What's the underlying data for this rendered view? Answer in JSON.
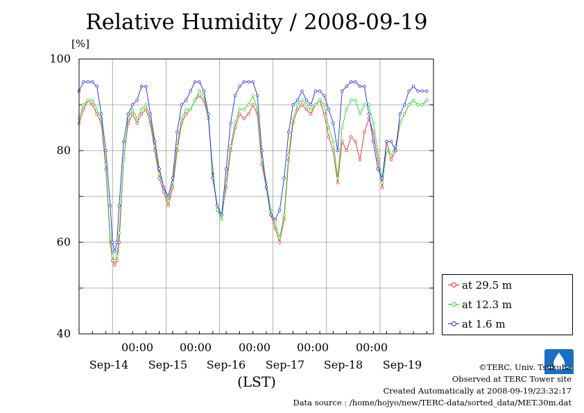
{
  "colors": {
    "s29": "#ee2222",
    "s12": "#22dd22",
    "s16": "#2222ee",
    "grid": "#999999"
  },
  "chart_data": {
    "type": "line",
    "title": "Relative Humidity / 2008-09-19",
    "ylabel": "[%]",
    "xlabel": "(LST)",
    "ylim": [
      40,
      100
    ],
    "yticks": [
      "100",
      "80",
      "60",
      "40"
    ],
    "xlim": [
      "2008-09-13 09:00",
      "2008-09-19 24:00"
    ],
    "x_time_labels": [
      "00:00",
      "00:00",
      "00:00",
      "00:00",
      "00:00"
    ],
    "x_date_labels": [
      "Sep-14",
      "Sep-15",
      "Sep-16",
      "Sep-17",
      "Sep-18",
      "Sep-19"
    ],
    "grid": true,
    "legend": "bottom-right outside",
    "x_hours_since_start": [
      0,
      2,
      4,
      6,
      8,
      10,
      12,
      14,
      15,
      16,
      17,
      18,
      20,
      22,
      24,
      26,
      28,
      30,
      32,
      34,
      36,
      38,
      40,
      42,
      44,
      46,
      48,
      50,
      52,
      54,
      56,
      58,
      60,
      62,
      64,
      66,
      68,
      70,
      72,
      74,
      76,
      78,
      80,
      82,
      84,
      86,
      88,
      90,
      92,
      94,
      96,
      98,
      100,
      102,
      104,
      106,
      108,
      110,
      112,
      114,
      116,
      118,
      120,
      122,
      124,
      126,
      128,
      130,
      132,
      134,
      136,
      138,
      140,
      142,
      144,
      146,
      148,
      150,
      152,
      154,
      156
    ],
    "series": [
      {
        "name": "at 29.5 m",
        "color": "#ee2222",
        "values": [
          86,
          89,
          91,
          90,
          88,
          86,
          76,
          60,
          56,
          55,
          56,
          60,
          78,
          86,
          88,
          86,
          88,
          89,
          86,
          80,
          74,
          71,
          68,
          72,
          80,
          86,
          88,
          89,
          91,
          92,
          91,
          87,
          75,
          67,
          66,
          72,
          80,
          85,
          88,
          87,
          88,
          90,
          88,
          77,
          72,
          66,
          63,
          60,
          65,
          78,
          86,
          89,
          90,
          89,
          88,
          90,
          91,
          88,
          83,
          80,
          73,
          82,
          80,
          83,
          82,
          78,
          84,
          87,
          84,
          78,
          72,
          82,
          78,
          80,
          86,
          88,
          90,
          91,
          90,
          90,
          91
        ]
      },
      {
        "name": "at 12.3 m",
        "color": "#22dd22",
        "values": [
          87,
          90,
          91,
          91,
          89,
          87,
          77,
          61,
          57,
          56,
          57,
          62,
          78,
          87,
          89,
          87,
          89,
          90,
          87,
          81,
          75,
          72,
          69,
          73,
          81,
          87,
          89,
          89,
          91,
          93,
          92,
          87,
          76,
          67,
          65,
          73,
          81,
          86,
          89,
          89,
          90,
          92,
          89,
          78,
          73,
          67,
          64,
          61,
          66,
          79,
          87,
          90,
          91,
          90,
          89,
          90,
          91,
          90,
          85,
          82,
          74,
          85,
          89,
          91,
          91,
          88,
          90,
          90,
          86,
          80,
          73,
          80,
          79,
          81,
          86,
          88,
          90,
          91,
          90,
          90,
          91
        ]
      },
      {
        "name": "at 1.6 m",
        "color": "#2222ee",
        "values": [
          93,
          95,
          95,
          95,
          94,
          88,
          80,
          68,
          60,
          58,
          60,
          68,
          82,
          88,
          90,
          91,
          94,
          94,
          88,
          82,
          76,
          72,
          70,
          74,
          84,
          90,
          91,
          93,
          95,
          95,
          93,
          88,
          74,
          68,
          66,
          76,
          86,
          92,
          94,
          95,
          95,
          95,
          92,
          80,
          72,
          66,
          65,
          67,
          74,
          84,
          90,
          91,
          93,
          91,
          90,
          93,
          93,
          92,
          89,
          86,
          80,
          93,
          94,
          95,
          95,
          94,
          94,
          88,
          82,
          76,
          74,
          82,
          82,
          80,
          88,
          90,
          93,
          94,
          93,
          93,
          93
        ]
      }
    ]
  },
  "credits": {
    "copyright": "©TERC, Univ. Tsukuba",
    "site": "Observed at TERC Tower site",
    "created": "Created Automatically at 2008-09-19/23:32:17",
    "source": "Data source : /home/hojyo/new/TERC-data/sorted_data/MET.30m.dat"
  }
}
